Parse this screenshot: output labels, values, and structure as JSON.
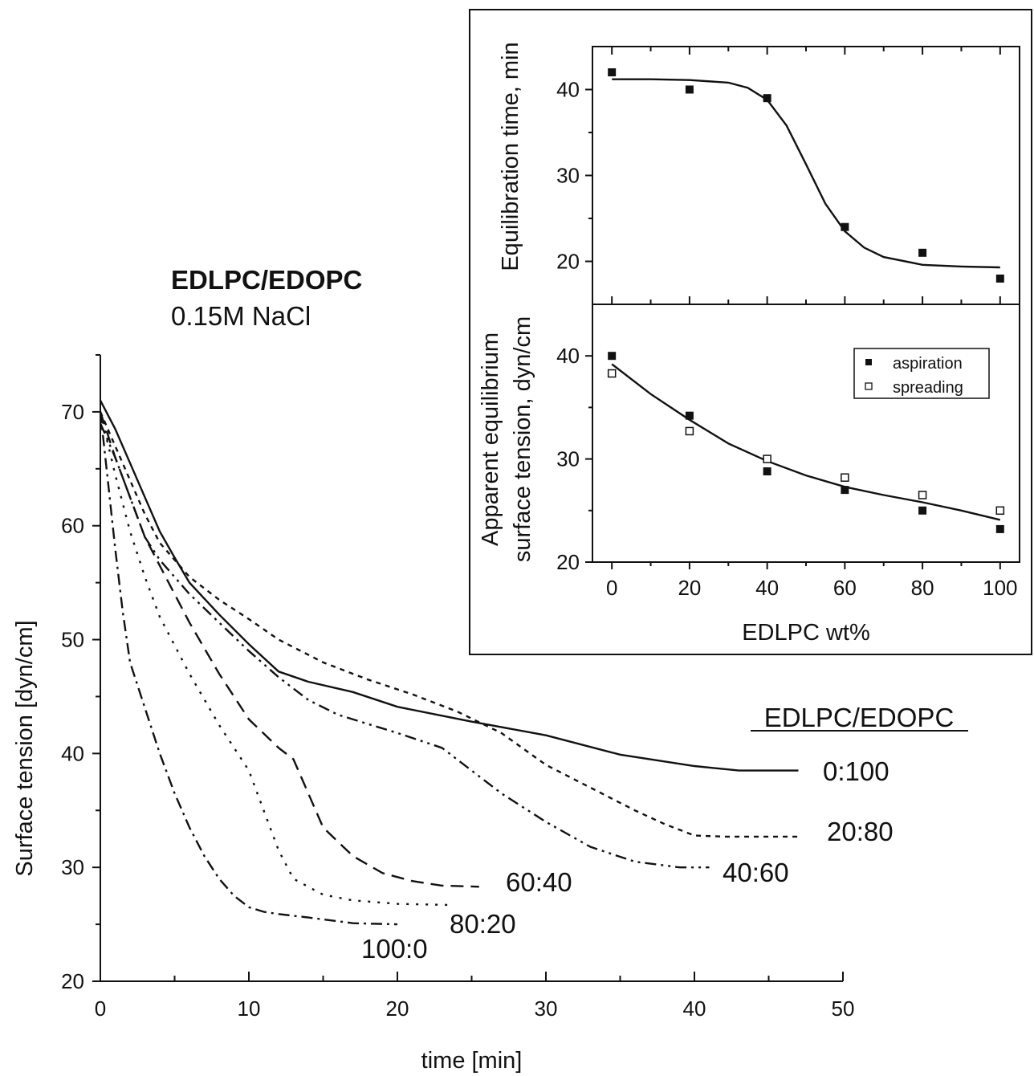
{
  "chart_data": [
    {
      "type": "line",
      "title": "EDLPC/EDOPC",
      "subtitle": "0.15M NaCl",
      "xlabel": "time [min]",
      "ylabel": "Surface tension [dyn/cm]",
      "xlim": [
        0,
        50
      ],
      "ylim": [
        20,
        75
      ],
      "xticks": [
        0,
        10,
        20,
        30,
        40,
        50
      ],
      "yticks": [
        20,
        30,
        40,
        50,
        60,
        70
      ],
      "legend_title": "EDLPC/EDOPC",
      "grid": false,
      "series": [
        {
          "name": "0:100",
          "style": "solid",
          "x": [
            0,
            1,
            2,
            3,
            4,
            5,
            6,
            8,
            10,
            12,
            14,
            17,
            20,
            25,
            30,
            35,
            40,
            43,
            47
          ],
          "y": [
            71,
            68.5,
            65.5,
            62.5,
            59.5,
            57.2,
            55.0,
            52.2,
            49.6,
            47.2,
            46.3,
            45.4,
            44.1,
            42.8,
            41.6,
            39.9,
            38.9,
            38.5,
            38.5
          ]
        },
        {
          "name": "20:80",
          "style": "dotted",
          "x": [
            0,
            1,
            2,
            3,
            4,
            6,
            8,
            10,
            12,
            15,
            18,
            21,
            24,
            27,
            30,
            33,
            36,
            38,
            40,
            42,
            47
          ],
          "y": [
            70,
            67,
            64,
            61,
            58.5,
            55.5,
            53.5,
            51.8,
            50,
            48,
            46.5,
            45.2,
            43.7,
            41.8,
            39,
            37,
            35,
            33.8,
            32.8,
            32.7,
            32.7
          ]
        },
        {
          "name": "40:60",
          "style": "dash-dot-dot",
          "x": [
            0,
            1,
            2,
            3,
            4,
            6,
            8,
            10,
            12,
            14,
            16,
            18,
            20,
            23,
            25,
            27,
            30,
            33,
            36,
            39,
            41
          ],
          "y": [
            69,
            66,
            62.5,
            59,
            57,
            54,
            51.5,
            49,
            46.7,
            44.7,
            43.4,
            42.6,
            41.8,
            40.5,
            38.5,
            36.5,
            34,
            31.8,
            30.5,
            30,
            30
          ]
        },
        {
          "name": "60:40",
          "style": "dashed",
          "x": [
            0,
            1,
            2,
            3,
            4,
            6,
            8,
            10,
            12,
            13,
            14,
            15,
            17,
            19,
            21,
            23,
            25.5
          ],
          "y": [
            70,
            66,
            62.5,
            59,
            56.5,
            51.5,
            47,
            43,
            40.5,
            39.5,
            36.5,
            33.5,
            31,
            29.5,
            28.8,
            28.4,
            28.3
          ]
        },
        {
          "name": "80:20",
          "style": "dotted-sparse",
          "x": [
            0,
            1,
            2,
            3,
            4,
            6,
            8,
            10,
            11,
            12,
            13,
            15,
            17,
            20,
            23.5
          ],
          "y": [
            70,
            64.5,
            59.5,
            55.5,
            52,
            47,
            42.5,
            38.5,
            35,
            31.5,
            29,
            27.6,
            27.1,
            26.8,
            26.7
          ]
        },
        {
          "name": "100:0",
          "style": "dash-dot",
          "x": [
            0,
            0.5,
            1,
            1.5,
            2,
            3,
            4,
            5,
            6,
            7,
            8,
            9,
            10,
            11,
            12,
            14,
            17,
            20
          ],
          "y": [
            70,
            64,
            58,
            52.5,
            48,
            44,
            40,
            36.5,
            33.5,
            31,
            29,
            27.5,
            26.5,
            26.1,
            25.9,
            25.6,
            25.1,
            25
          ]
        }
      ]
    },
    {
      "type": "line",
      "xlabel": "",
      "ylabel": "Equilibration time, min",
      "xlim": [
        -5,
        105
      ],
      "ylim": [
        15,
        45
      ],
      "yticks": [
        20,
        30,
        40
      ],
      "grid": false,
      "series": [
        {
          "name": "",
          "style": "points",
          "x": [
            0,
            20,
            40,
            60,
            80,
            100
          ],
          "y": [
            42,
            40,
            39,
            24,
            21,
            18
          ]
        },
        {
          "name": "",
          "style": "solid-fit",
          "x": [
            0,
            10,
            20,
            30,
            35,
            40,
            45,
            50,
            55,
            60,
            65,
            70,
            80,
            90,
            100
          ],
          "y": [
            41.2,
            41.2,
            41.1,
            40.8,
            40.2,
            38.8,
            35.8,
            31.3,
            26.7,
            23.5,
            21.6,
            20.5,
            19.6,
            19.4,
            19.3
          ]
        }
      ]
    },
    {
      "type": "scatter",
      "xlabel": "EDLPC wt%",
      "ylabel_lines": [
        "Apparent equilibrium",
        "surface tension, dyn/cm"
      ],
      "xlim": [
        -5,
        105
      ],
      "ylim": [
        20,
        45
      ],
      "xticks": [
        0,
        20,
        40,
        60,
        80,
        100
      ],
      "yticks": [
        20,
        30,
        40
      ],
      "legend_position": "top-right",
      "grid": false,
      "series": [
        {
          "name": "aspiration",
          "marker": "filled-square",
          "x": [
            0,
            20,
            40,
            60,
            80,
            100
          ],
          "y": [
            40,
            34.2,
            28.8,
            27,
            25,
            23.2
          ]
        },
        {
          "name": "spreading",
          "marker": "open-square",
          "x": [
            0,
            20,
            40,
            60,
            80,
            100
          ],
          "y": [
            38.3,
            32.7,
            30,
            28.2,
            26.5,
            25
          ]
        },
        {
          "name": "",
          "style": "solid-fit",
          "x": [
            0,
            10,
            20,
            30,
            40,
            50,
            60,
            70,
            80,
            90,
            100
          ],
          "y": [
            39.2,
            36.3,
            33.8,
            31.5,
            29.8,
            28.4,
            27.3,
            26.5,
            25.8,
            25,
            24.1
          ]
        }
      ]
    }
  ]
}
